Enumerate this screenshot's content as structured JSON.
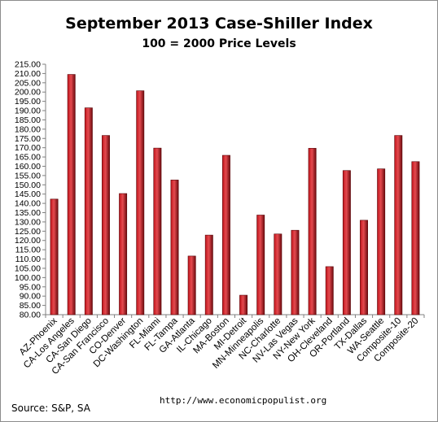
{
  "chart_data": {
    "type": "bar",
    "title": "September 2013 Case-Shiller Index",
    "subtitle": "100 = 2000 Price Levels",
    "xlabel": "",
    "ylabel": "",
    "ylim": [
      80,
      215
    ],
    "ytick_step": 5,
    "grid": false,
    "legend": "none",
    "bar_color": "#c0141b",
    "bar_highlight": "#e54a4f",
    "bar_shadow": "#6e0a0e",
    "categories": [
      "AZ-Phoenix",
      "CA-Los Angeles",
      "CA-San Diego",
      "CA-San Francisco",
      "CO-Denver",
      "DC-Washington",
      "FL-Miami",
      "FL-Tampa",
      "GA-Atlanta",
      "IL-Chicago",
      "MA-Boston",
      "MI-Detroit",
      "MN-Minneapolis",
      "NC-Charlotte",
      "NV-Las Vegas",
      "NY-New York",
      "OH-Cleveland",
      "OR-Portland",
      "TX-Dallas",
      "WA-Seattle",
      "Composite-10",
      "Composite-20"
    ],
    "values": [
      142.3,
      209.5,
      191.5,
      176.6,
      145.3,
      200.7,
      169.8,
      152.6,
      111.6,
      122.9,
      165.9,
      90.5,
      133.7,
      123.5,
      125.5,
      169.7,
      105.9,
      157.7,
      130.9,
      158.6,
      176.6,
      162.5
    ]
  },
  "footer": {
    "source": "Source:  S&P, SA",
    "credit": "http://www.economicpopulist.org"
  }
}
